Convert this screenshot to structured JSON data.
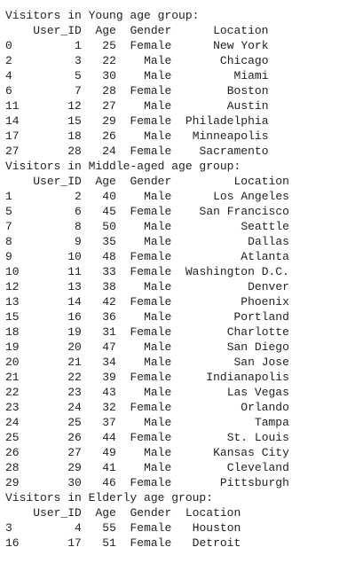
{
  "groups": [
    {
      "title": "Visitors in Young age group:",
      "columns": [
        "User_ID",
        "Age",
        "Gender",
        "Location"
      ],
      "rows": [
        [
          0,
          1,
          25,
          "Female",
          "New York"
        ],
        [
          2,
          3,
          22,
          "Male",
          "Chicago"
        ],
        [
          4,
          5,
          30,
          "Male",
          "Miami"
        ],
        [
          6,
          7,
          28,
          "Female",
          "Boston"
        ],
        [
          11,
          12,
          27,
          "Male",
          "Austin"
        ],
        [
          14,
          15,
          29,
          "Female",
          "Philadelphia"
        ],
        [
          17,
          18,
          26,
          "Male",
          "Minneapolis"
        ],
        [
          27,
          28,
          24,
          "Female",
          "Sacramento"
        ]
      ]
    },
    {
      "title": "Visitors in Middle-aged age group:",
      "columns": [
        "User_ID",
        "Age",
        "Gender",
        "Location"
      ],
      "rows": [
        [
          1,
          2,
          40,
          "Male",
          "Los Angeles"
        ],
        [
          5,
          6,
          45,
          "Female",
          "San Francisco"
        ],
        [
          7,
          8,
          50,
          "Male",
          "Seattle"
        ],
        [
          8,
          9,
          35,
          "Male",
          "Dallas"
        ],
        [
          9,
          10,
          48,
          "Female",
          "Atlanta"
        ],
        [
          10,
          11,
          33,
          "Female",
          "Washington D.C."
        ],
        [
          12,
          13,
          38,
          "Male",
          "Denver"
        ],
        [
          13,
          14,
          42,
          "Female",
          "Phoenix"
        ],
        [
          15,
          16,
          36,
          "Male",
          "Portland"
        ],
        [
          18,
          19,
          31,
          "Female",
          "Charlotte"
        ],
        [
          19,
          20,
          47,
          "Male",
          "San Diego"
        ],
        [
          20,
          21,
          34,
          "Male",
          "San Jose"
        ],
        [
          21,
          22,
          39,
          "Female",
          "Indianapolis"
        ],
        [
          22,
          23,
          43,
          "Male",
          "Las Vegas"
        ],
        [
          23,
          24,
          32,
          "Female",
          "Orlando"
        ],
        [
          24,
          25,
          37,
          "Male",
          "Tampa"
        ],
        [
          25,
          26,
          44,
          "Female",
          "St. Louis"
        ],
        [
          26,
          27,
          49,
          "Male",
          "Kansas City"
        ],
        [
          28,
          29,
          41,
          "Male",
          "Cleveland"
        ],
        [
          29,
          30,
          46,
          "Female",
          "Pittsburgh"
        ]
      ]
    },
    {
      "title": "Visitors in Elderly age group:",
      "columns": [
        "User_ID",
        "Age",
        "Gender",
        "Location"
      ],
      "rows": [
        [
          3,
          4,
          55,
          "Female",
          "Houston"
        ],
        [
          16,
          17,
          51,
          "Female",
          "Detroit"
        ]
      ]
    }
  ]
}
